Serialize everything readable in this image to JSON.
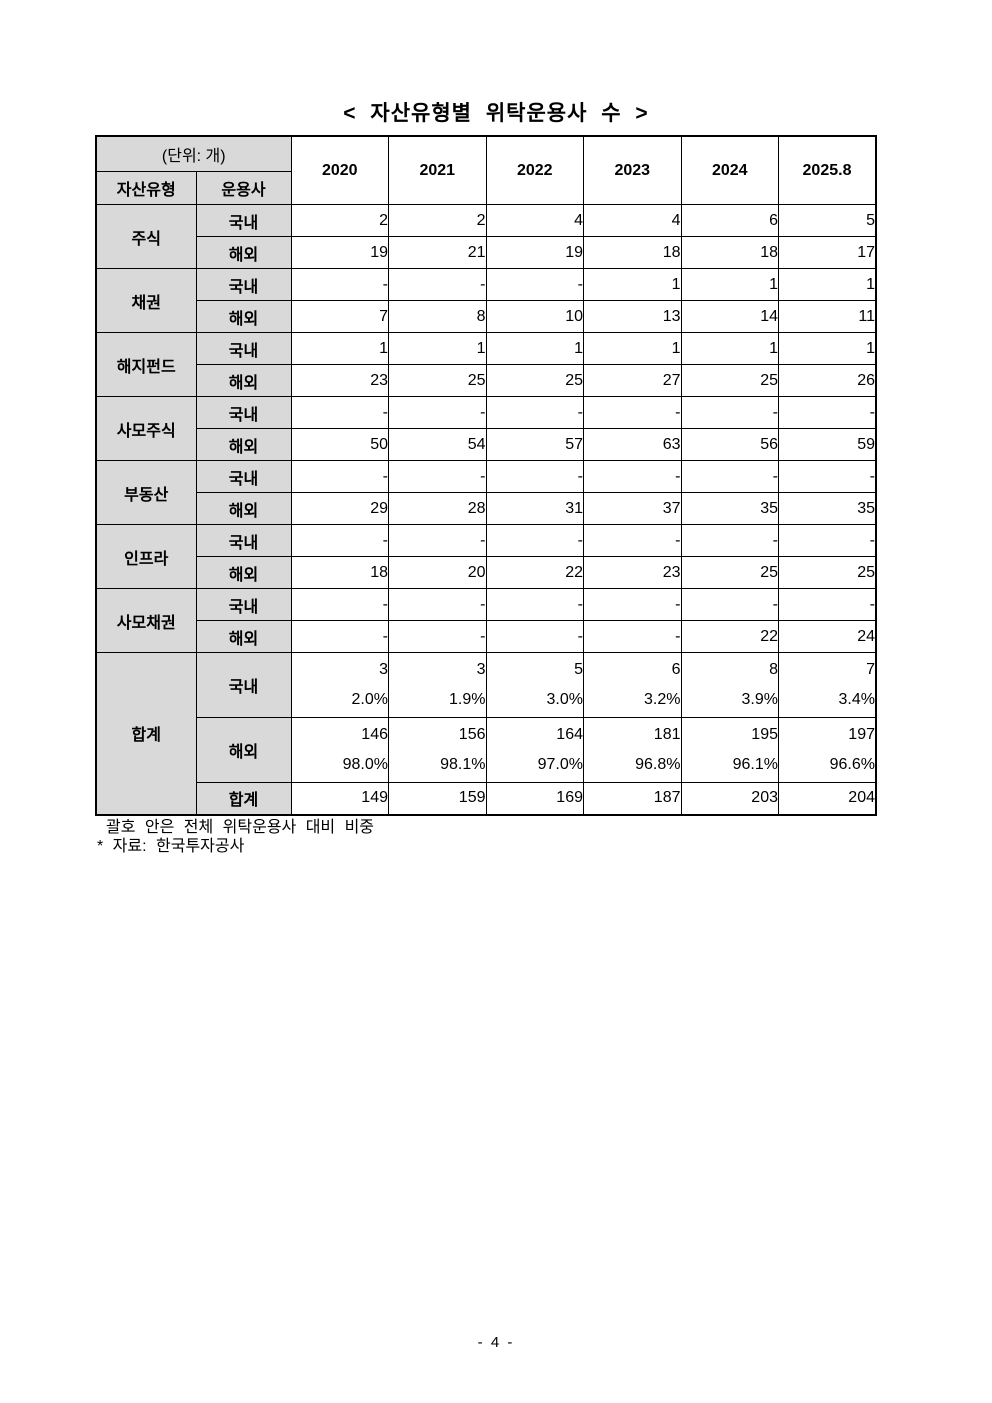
{
  "page": {
    "title": "< 자산유형별 위탁운용사 수 >",
    "footnote_1": "괄호 안은 전체 위탁운용사 대비 비중",
    "footnote_2": "* 자료: 한국투자공사",
    "page_number": "- 4 -"
  },
  "table": {
    "unit_label": "(단위: 개)",
    "col1_header": "자산유형",
    "col2_header": "운용사",
    "years": [
      "2020",
      "2021",
      "2022",
      "2023",
      "2024",
      "2025.8"
    ],
    "groups": [
      {
        "name": "주식",
        "rows": [
          {
            "label": "국내",
            "values": [
              "2",
              "2",
              "4",
              "4",
              "6",
              "5"
            ]
          },
          {
            "label": "해외",
            "values": [
              "19",
              "21",
              "19",
              "18",
              "18",
              "17"
            ]
          }
        ]
      },
      {
        "name": "채권",
        "rows": [
          {
            "label": "국내",
            "values": [
              "-",
              "-",
              "-",
              "1",
              "1",
              "1"
            ]
          },
          {
            "label": "해외",
            "values": [
              "7",
              "8",
              "10",
              "13",
              "14",
              "11"
            ]
          }
        ]
      },
      {
        "name": "해지펀드",
        "rows": [
          {
            "label": "국내",
            "values": [
              "1",
              "1",
              "1",
              "1",
              "1",
              "1"
            ]
          },
          {
            "label": "해외",
            "values": [
              "23",
              "25",
              "25",
              "27",
              "25",
              "26"
            ]
          }
        ]
      },
      {
        "name": "사모주식",
        "rows": [
          {
            "label": "국내",
            "values": [
              "-",
              "-",
              "-",
              "-",
              "-",
              "-"
            ]
          },
          {
            "label": "해외",
            "values": [
              "50",
              "54",
              "57",
              "63",
              "56",
              "59"
            ]
          }
        ]
      },
      {
        "name": "부동산",
        "rows": [
          {
            "label": "국내",
            "values": [
              "-",
              "-",
              "-",
              "-",
              "-",
              "-"
            ]
          },
          {
            "label": "해외",
            "values": [
              "29",
              "28",
              "31",
              "37",
              "35",
              "35"
            ]
          }
        ]
      },
      {
        "name": "인프라",
        "rows": [
          {
            "label": "국내",
            "values": [
              "-",
              "-",
              "-",
              "-",
              "-",
              "-"
            ]
          },
          {
            "label": "해외",
            "values": [
              "18",
              "20",
              "22",
              "23",
              "25",
              "25"
            ]
          }
        ]
      },
      {
        "name": "사모채권",
        "rows": [
          {
            "label": "국내",
            "values": [
              "-",
              "-",
              "-",
              "-",
              "-",
              "-"
            ]
          },
          {
            "label": "해외",
            "values": [
              "-",
              "-",
              "-",
              "-",
              "22",
              "24"
            ]
          }
        ]
      }
    ],
    "total": {
      "name": "합계",
      "domestic": {
        "label": "국내",
        "values": [
          "3",
          "3",
          "5",
          "6",
          "8",
          "7"
        ],
        "pcts": [
          "2.0%",
          "1.9%",
          "3.0%",
          "3.2%",
          "3.9%",
          "3.4%"
        ]
      },
      "overseas": {
        "label": "해외",
        "values": [
          "146",
          "156",
          "164",
          "181",
          "195",
          "197"
        ],
        "pcts": [
          "98.0%",
          "98.1%",
          "97.0%",
          "96.8%",
          "96.1%",
          "96.6%"
        ]
      },
      "grand": {
        "label": "합계",
        "values": [
          "149",
          "159",
          "169",
          "187",
          "203",
          "204"
        ]
      }
    }
  }
}
